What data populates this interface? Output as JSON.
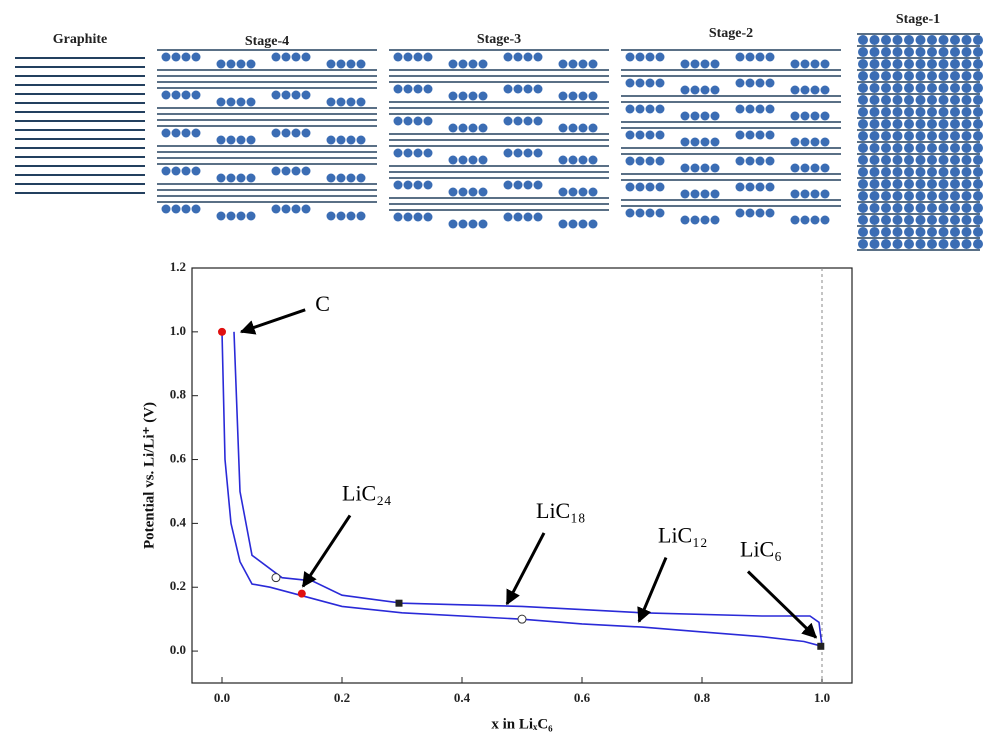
{
  "schematic": {
    "labels": [
      "Graphite",
      "Stage-4",
      "Stage-3",
      "Stage-2",
      "Stage-1"
    ]
  },
  "chart_data": {
    "type": "line",
    "xlabel": "x in LiₓC₆",
    "ylabel": "Potential vs. Li/Li⁺ (V)",
    "xlim": [
      -0.05,
      1.05
    ],
    "ylim": [
      -0.1,
      1.2
    ],
    "xticks": [
      {
        "value": 0,
        "label": "0.0"
      },
      0.2,
      0.4,
      0.6,
      0.8,
      {
        "value": 1,
        "label": "1.0"
      }
    ],
    "yticks": [
      {
        "value": 0,
        "label": "0.0"
      },
      0.2,
      0.4,
      0.6,
      0.8,
      {
        "value": 1,
        "label": "1.0"
      },
      1.2
    ],
    "vline": 1.0,
    "series": [
      {
        "color": "#2a2ad8",
        "x": [
          0,
          0.005,
          0.015,
          0.03,
          0.05,
          0.08,
          0.13,
          0.2,
          0.3,
          0.5,
          0.6,
          0.7,
          0.8,
          0.9,
          0.97,
          1.0
        ],
        "values": [
          1.0,
          0.6,
          0.4,
          0.28,
          0.21,
          0.2,
          0.175,
          0.14,
          0.12,
          0.1,
          0.085,
          0.075,
          0.06,
          0.045,
          0.03,
          0.015
        ]
      },
      {
        "color": "#2a2ad8",
        "x": [
          1.0,
          0.995,
          0.98,
          0.9,
          0.7,
          0.6,
          0.5,
          0.4,
          0.3,
          0.2,
          0.15,
          0.1,
          0.05,
          0.03,
          0.02
        ],
        "values": [
          0.015,
          0.09,
          0.11,
          0.11,
          0.12,
          0.13,
          0.14,
          0.145,
          0.15,
          0.175,
          0.22,
          0.23,
          0.3,
          0.5,
          1.0
        ]
      }
    ],
    "markers": [
      {
        "shape": "circle",
        "color": "#e01010",
        "x": [
          0,
          0.133
        ],
        "values": [
          1.0,
          0.18
        ]
      },
      {
        "shape": "open-circle",
        "color": "#ffffff",
        "x": [
          0.09,
          0.5
        ],
        "values": [
          0.23,
          0.1
        ]
      },
      {
        "shape": "square",
        "color": "#222222",
        "x": [
          0.295,
          0.998
        ],
        "values": [
          0.15,
          0.015
        ]
      }
    ],
    "annotations": [
      {
        "text": "C",
        "x": 0.022,
        "y": 1.0
      },
      {
        "text": "LiC₂₄",
        "x": 0.13,
        "y": 0.19
      },
      {
        "text": "LiC₁₈",
        "x": 0.47,
        "y": 0.135
      },
      {
        "text": "LiC₁₂",
        "x": 0.69,
        "y": 0.08
      },
      {
        "text": "LiC₆",
        "x": 0.985,
        "y": 0.03
      }
    ]
  }
}
